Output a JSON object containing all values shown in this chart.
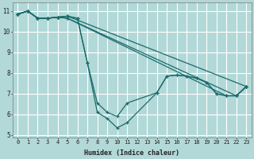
{
  "xlabel": "Humidex (Indice chaleur)",
  "bg_color": "#b2d8d8",
  "grid_color": "#ffffff",
  "line_color": "#1a6b6b",
  "xlim_min": -0.5,
  "xlim_max": 23.5,
  "ylim_min": 4.9,
  "ylim_max": 11.4,
  "yticks": [
    5,
    6,
    7,
    8,
    9,
    10,
    11
  ],
  "xticks": [
    0,
    1,
    2,
    3,
    4,
    5,
    6,
    7,
    8,
    9,
    10,
    11,
    12,
    13,
    14,
    15,
    16,
    17,
    18,
    19,
    20,
    21,
    22,
    23
  ],
  "lines": [
    {
      "x": [
        0,
        1,
        2,
        3,
        4,
        5,
        6,
        7,
        8,
        9,
        10,
        11,
        14,
        15,
        16,
        17,
        18,
        19,
        20,
        21,
        22,
        23
      ],
      "y": [
        10.85,
        11.0,
        10.65,
        10.65,
        10.7,
        10.75,
        10.65,
        8.5,
        6.55,
        6.1,
        5.9,
        6.55,
        7.05,
        7.85,
        7.9,
        7.85,
        7.75,
        7.55,
        7.0,
        6.9,
        6.9,
        7.35
      ]
    },
    {
      "x": [
        0,
        1,
        2,
        3,
        4,
        5,
        6,
        7,
        8,
        9,
        10,
        11,
        14,
        15,
        16,
        17,
        18,
        19,
        20,
        21,
        22,
        23
      ],
      "y": [
        10.85,
        11.0,
        10.65,
        10.65,
        10.7,
        10.75,
        10.65,
        8.5,
        6.1,
        5.8,
        5.35,
        5.6,
        7.05,
        7.85,
        7.9,
        7.85,
        7.75,
        7.55,
        7.0,
        6.9,
        6.9,
        7.35
      ]
    },
    {
      "x": [
        0,
        1,
        2,
        3,
        4,
        5,
        23
      ],
      "y": [
        10.85,
        11.0,
        10.65,
        10.65,
        10.7,
        10.75,
        7.35
      ]
    },
    {
      "x": [
        0,
        1,
        2,
        3,
        4,
        5,
        22,
        23
      ],
      "y": [
        10.85,
        11.0,
        10.65,
        10.65,
        10.7,
        10.65,
        6.9,
        7.35
      ]
    },
    {
      "x": [
        0,
        1,
        2,
        3,
        4,
        5,
        21,
        22,
        23
      ],
      "y": [
        10.85,
        11.0,
        10.65,
        10.65,
        10.7,
        10.65,
        6.9,
        6.9,
        7.35
      ]
    }
  ]
}
